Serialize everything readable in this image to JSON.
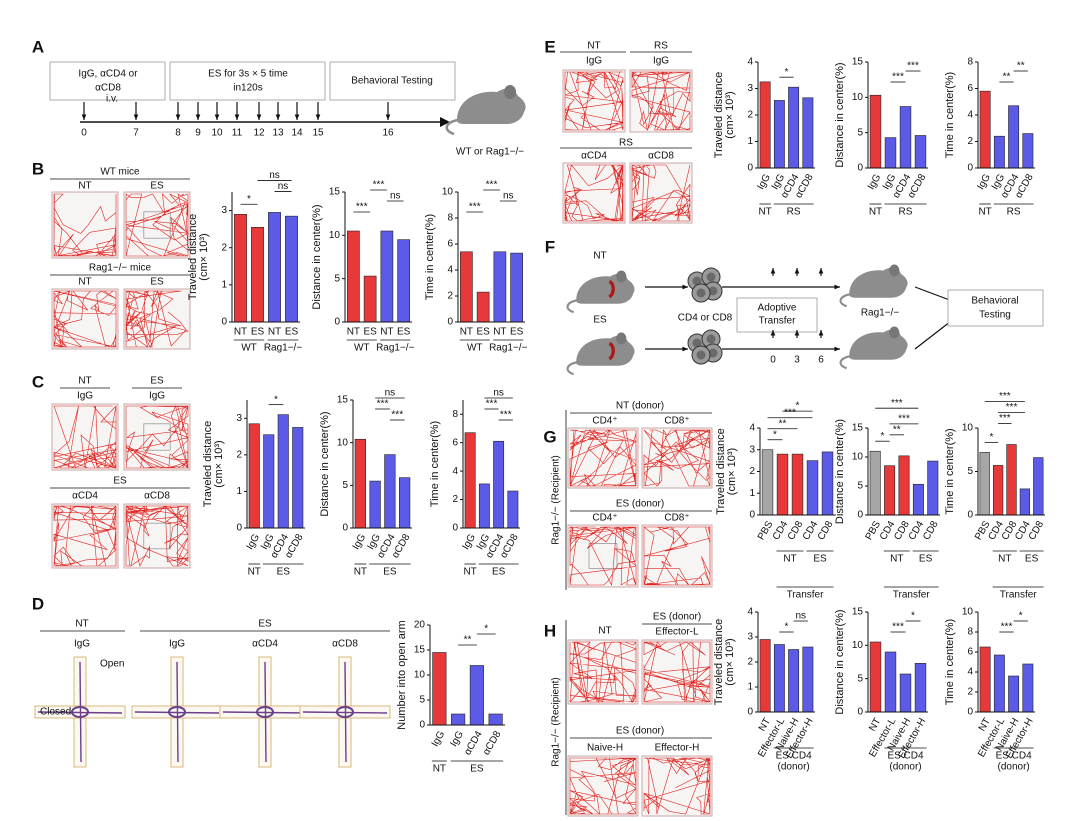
{
  "diagram": {
    "panel_labels": [
      "A",
      "B",
      "C",
      "D",
      "E",
      "F",
      "G",
      "H"
    ],
    "A": {
      "texts": [
        "IgG, αCD4 or",
        "αCD8",
        "ES for 3s × 5 time",
        "in120s",
        "Behavioral Testing",
        "i.v.",
        "WT or Rag1−/−"
      ],
      "days": [
        0,
        7,
        8,
        9,
        10,
        11,
        12,
        13,
        14,
        15,
        16
      ]
    },
    "B": {
      "texts": [
        "WT mice",
        "NT",
        "ES",
        "Rag1−/− mice",
        "NT",
        "ES"
      ]
    },
    "C": {
      "texts": [
        "NT",
        "IgG",
        "ES",
        "IgG",
        "ES",
        "αCD4",
        "αCD8"
      ]
    },
    "D": {
      "texts": [
        "NT",
        "ES",
        "IgG",
        "IgG",
        "αCD4",
        "αCD8",
        "Open",
        "Closed"
      ]
    },
    "E": {
      "texts": [
        "NT",
        "IgG",
        "RS",
        "IgG",
        "RS",
        "αCD4",
        "αCD8"
      ]
    },
    "F": {
      "texts": [
        "NT",
        "ES",
        "CD4 or CD8",
        "Adoptive",
        "Transfer",
        "Rag1−/−",
        "Behavioral",
        "Testing"
      ],
      "days": [
        0,
        3,
        6
      ]
    },
    "G": {
      "texts": [
        "NT (donor)",
        "CD4⁺",
        "CD8⁺",
        "ES (donor)",
        "CD4⁺",
        "CD8⁺",
        "Rag1−/− (Recipient)"
      ]
    },
    "H": {
      "texts": [
        "NT",
        "ES (donor)",
        "Effector-L",
        "ES (donor)",
        "Naive-H",
        "Effector-H",
        "Rag1−/− (Recipient)"
      ]
    }
  },
  "chart_data": [
    {
      "type": "bar",
      "ylabel": [
        "Traveled distance",
        "(cm× 10³)"
      ],
      "categories": [
        "NT",
        "ES",
        "NT",
        "ES"
      ],
      "values": [
        2.9,
        2.55,
        2.95,
        2.85
      ],
      "colors": [
        "#e8393a",
        "#e8393a",
        "#5b5be8",
        "#5b5be8"
      ],
      "ylim": [
        0,
        3.5
      ],
      "yticks": [
        0,
        1,
        2,
        3
      ],
      "groups": [
        {
          "lines": [
            "WT"
          ],
          "span": [
            0,
            1
          ]
        },
        {
          "lines": [
            "Rag1−/−"
          ],
          "span": [
            2,
            3
          ]
        }
      ],
      "annotations": [
        {
          "text": "*",
          "between": [
            0,
            1
          ]
        },
        {
          "text": "ns",
          "between": [
            2,
            3
          ]
        },
        {
          "text": "ns",
          "between": [
            1,
            3
          ]
        }
      ]
    },
    {
      "type": "bar",
      "ylabel": [
        "Distance in center(%)"
      ],
      "categories": [
        "NT",
        "ES",
        "NT",
        "ES"
      ],
      "values": [
        10.5,
        5.3,
        10.5,
        9.5
      ],
      "colors": [
        "#e8393a",
        "#e8393a",
        "#5b5be8",
        "#5b5be8"
      ],
      "ylim": [
        0,
        15
      ],
      "yticks": [
        0,
        5,
        10,
        15
      ],
      "groups": [
        {
          "lines": [
            "WT"
          ],
          "span": [
            0,
            1
          ]
        },
        {
          "lines": [
            "Rag1−/−"
          ],
          "span": [
            2,
            3
          ]
        }
      ],
      "annotations": [
        {
          "text": "***",
          "between": [
            0,
            1
          ]
        },
        {
          "text": "ns",
          "between": [
            2,
            3
          ]
        },
        {
          "text": "***",
          "between": [
            1,
            2
          ]
        }
      ]
    },
    {
      "type": "bar",
      "ylabel": [
        "Time in center(%)"
      ],
      "categories": [
        "NT",
        "ES",
        "NT",
        "ES"
      ],
      "values": [
        5.4,
        2.3,
        5.4,
        5.3
      ],
      "colors": [
        "#e8393a",
        "#e8393a",
        "#5b5be8",
        "#5b5be8"
      ],
      "ylim": [
        0,
        10
      ],
      "yticks": [
        0,
        2,
        4,
        6,
        8,
        10
      ],
      "groups": [
        {
          "lines": [
            "WT"
          ],
          "span": [
            0,
            1
          ]
        },
        {
          "lines": [
            "Rag1−/−"
          ],
          "span": [
            2,
            3
          ]
        }
      ],
      "annotations": [
        {
          "text": "***",
          "between": [
            0,
            1
          ]
        },
        {
          "text": "ns",
          "between": [
            2,
            3
          ]
        },
        {
          "text": "***",
          "between": [
            1,
            2
          ]
        }
      ]
    },
    {
      "type": "bar",
      "ylabel": [
        "Traveled distance",
        "(cm× 10³)"
      ],
      "categories": [
        "IgG",
        "IgG",
        "αCD4",
        "αCD8"
      ],
      "values": [
        2.85,
        2.55,
        3.1,
        2.75
      ],
      "colors": [
        "#e8393a",
        "#5b5be8",
        "#5b5be8",
        "#5b5be8"
      ],
      "ylim": [
        0,
        3.5
      ],
      "yticks": [
        0,
        1,
        2,
        3
      ],
      "groups": [
        {
          "lines": [
            "NT"
          ],
          "span": [
            0,
            0
          ]
        },
        {
          "lines": [
            "ES"
          ],
          "span": [
            1,
            3
          ]
        }
      ],
      "annotations": [
        {
          "text": "*",
          "between": [
            1,
            2
          ]
        }
      ]
    },
    {
      "type": "bar",
      "ylabel": [
        "Distance in center(%)"
      ],
      "categories": [
        "IgG",
        "IgG",
        "αCD4",
        "αCD8"
      ],
      "values": [
        10.4,
        5.5,
        8.6,
        5.9
      ],
      "colors": [
        "#e8393a",
        "#5b5be8",
        "#5b5be8",
        "#5b5be8"
      ],
      "ylim": [
        0,
        15
      ],
      "yticks": [
        0,
        5,
        10,
        15
      ],
      "groups": [
        {
          "lines": [
            "NT"
          ],
          "span": [
            0,
            0
          ]
        },
        {
          "lines": [
            "ES"
          ],
          "span": [
            1,
            3
          ]
        }
      ],
      "annotations": [
        {
          "text": "***",
          "between": [
            2,
            3
          ]
        },
        {
          "text": "***",
          "between": [
            1,
            2
          ]
        },
        {
          "text": "ns",
          "between": [
            1,
            3
          ]
        }
      ]
    },
    {
      "type": "bar",
      "ylabel": [
        "Time in center(%)"
      ],
      "categories": [
        "IgG",
        "IgG",
        "αCD4",
        "αCD8"
      ],
      "values": [
        6.7,
        3.1,
        6.1,
        2.6
      ],
      "colors": [
        "#e8393a",
        "#5b5be8",
        "#5b5be8",
        "#5b5be8"
      ],
      "ylim": [
        0,
        9
      ],
      "yticks": [
        0,
        2,
        4,
        6,
        8
      ],
      "groups": [
        {
          "lines": [
            "NT"
          ],
          "span": [
            0,
            0
          ]
        },
        {
          "lines": [
            "ES"
          ],
          "span": [
            1,
            3
          ]
        }
      ],
      "annotations": [
        {
          "text": "***",
          "between": [
            2,
            3
          ]
        },
        {
          "text": "***",
          "between": [
            1,
            2
          ]
        },
        {
          "text": "ns",
          "between": [
            1,
            3
          ]
        }
      ]
    },
    {
      "type": "bar",
      "ylabel": [
        "Number into open arm"
      ],
      "categories": [
        "IgG",
        "IgG",
        "αCD4",
        "αCD8"
      ],
      "values": [
        14.5,
        2.2,
        11.9,
        2.2
      ],
      "colors": [
        "#e8393a",
        "#5b5be8",
        "#5b5be8",
        "#5b5be8"
      ],
      "ylim": [
        0,
        20
      ],
      "yticks": [
        0,
        5,
        10,
        15,
        20
      ],
      "groups": [
        {
          "lines": [
            "NT"
          ],
          "span": [
            0,
            0
          ]
        },
        {
          "lines": [
            "ES"
          ],
          "span": [
            1,
            3
          ]
        }
      ],
      "annotations": [
        {
          "text": "**",
          "between": [
            1,
            2
          ]
        },
        {
          "text": "*",
          "between": [
            2,
            3
          ]
        }
      ]
    },
    {
      "type": "bar",
      "ylabel": [
        "Traveled distance",
        "(cm× 10³)"
      ],
      "categories": [
        "IgG",
        "IgG",
        "αCD4",
        "αCD8"
      ],
      "values": [
        3.25,
        2.55,
        3.05,
        2.65
      ],
      "colors": [
        "#e8393a",
        "#5b5be8",
        "#5b5be8",
        "#5b5be8"
      ],
      "ylim": [
        0,
        4
      ],
      "yticks": [
        0,
        1,
        2,
        3,
        4
      ],
      "groups": [
        {
          "lines": [
            "NT"
          ],
          "span": [
            0,
            0
          ]
        },
        {
          "lines": [
            "RS"
          ],
          "span": [
            1,
            3
          ]
        }
      ],
      "annotations": [
        {
          "text": "*",
          "between": [
            1,
            2
          ]
        }
      ]
    },
    {
      "type": "bar",
      "ylabel": [
        "Distance in center(%)"
      ],
      "categories": [
        "IgG",
        "IgG",
        "αCD4",
        "αCD8"
      ],
      "values": [
        10.3,
        4.3,
        8.7,
        4.6
      ],
      "colors": [
        "#e8393a",
        "#5b5be8",
        "#5b5be8",
        "#5b5be8"
      ],
      "ylim": [
        0,
        15
      ],
      "yticks": [
        0,
        5,
        10,
        15
      ],
      "groups": [
        {
          "lines": [
            "NT"
          ],
          "span": [
            0,
            0
          ]
        },
        {
          "lines": [
            "RS"
          ],
          "span": [
            1,
            3
          ]
        }
      ],
      "annotations": [
        {
          "text": "***",
          "between": [
            1,
            2
          ]
        },
        {
          "text": "***",
          "between": [
            2,
            3
          ]
        }
      ]
    },
    {
      "type": "bar",
      "ylabel": [
        "Time in center(%)"
      ],
      "categories": [
        "IgG",
        "IgG",
        "αCD4",
        "αCD8"
      ],
      "values": [
        5.8,
        2.4,
        4.7,
        2.6
      ],
      "colors": [
        "#e8393a",
        "#5b5be8",
        "#5b5be8",
        "#5b5be8"
      ],
      "ylim": [
        0,
        8
      ],
      "yticks": [
        0,
        2,
        4,
        6,
        8
      ],
      "groups": [
        {
          "lines": [
            "NT"
          ],
          "span": [
            0,
            0
          ]
        },
        {
          "lines": [
            "RS"
          ],
          "span": [
            1,
            3
          ]
        }
      ],
      "annotations": [
        {
          "text": "**",
          "between": [
            1,
            2
          ]
        },
        {
          "text": "**",
          "between": [
            2,
            3
          ]
        }
      ]
    },
    {
      "type": "bar",
      "ylabel": [
        "Traveled distance",
        "(cm× 10³)"
      ],
      "categories": [
        "PBS",
        "CD4",
        "CD8",
        "CD4",
        "CD8"
      ],
      "values": [
        3.0,
        2.8,
        2.8,
        2.5,
        2.9
      ],
      "colors": [
        "#a6a6a6",
        "#e8393a",
        "#e8393a",
        "#5b5be8",
        "#5b5be8"
      ],
      "ylim": [
        0,
        4
      ],
      "yticks": [
        0,
        1,
        2,
        3,
        4
      ],
      "groups": [
        {
          "lines": [
            "NT"
          ],
          "span": [
            1,
            2
          ]
        },
        {
          "lines": [
            "ES"
          ],
          "span": [
            3,
            4
          ]
        },
        {
          "lines": [
            "Transfer"
          ],
          "span": [
            1,
            4
          ]
        }
      ],
      "annotations": [
        {
          "text": "*",
          "between": [
            0,
            1
          ]
        },
        {
          "text": "**",
          "between": [
            0,
            2
          ]
        },
        {
          "text": "***",
          "between": [
            0,
            3
          ]
        },
        {
          "text": "*",
          "between": [
            1,
            3
          ]
        }
      ]
    },
    {
      "type": "bar",
      "ylabel": [
        "Distance in center(%)"
      ],
      "categories": [
        "PBS",
        "CD4",
        "CD8",
        "CD4",
        "CD8"
      ],
      "values": [
        11,
        8.5,
        10.2,
        5.3,
        9.3
      ],
      "colors": [
        "#a6a6a6",
        "#e8393a",
        "#e8393a",
        "#5b5be8",
        "#5b5be8"
      ],
      "ylim": [
        0,
        15
      ],
      "yticks": [
        0,
        5,
        10,
        15
      ],
      "groups": [
        {
          "lines": [
            "NT"
          ],
          "span": [
            1,
            2
          ]
        },
        {
          "lines": [
            "ES"
          ],
          "span": [
            3,
            4
          ]
        },
        {
          "lines": [
            "Transfer"
          ],
          "span": [
            1,
            4
          ]
        }
      ],
      "annotations": [
        {
          "text": "*",
          "between": [
            0,
            1
          ]
        },
        {
          "text": "**",
          "between": [
            1,
            2
          ]
        },
        {
          "text": "***",
          "between": [
            1,
            3
          ]
        },
        {
          "text": "***",
          "between": [
            0,
            3
          ]
        }
      ]
    },
    {
      "type": "bar",
      "ylabel": [
        "Time in center(%)"
      ],
      "categories": [
        "PBS",
        "CD4",
        "CD8",
        "CD4",
        "CD8"
      ],
      "values": [
        7.2,
        5.7,
        8.1,
        3.0,
        6.6
      ],
      "colors": [
        "#a6a6a6",
        "#e8393a",
        "#e8393a",
        "#5b5be8",
        "#5b5be8"
      ],
      "ylim": [
        0,
        10
      ],
      "yticks": [
        0,
        5,
        10
      ],
      "groups": [
        {
          "lines": [
            "NT"
          ],
          "span": [
            1,
            2
          ]
        },
        {
          "lines": [
            "ES"
          ],
          "span": [
            3,
            4
          ]
        },
        {
          "lines": [
            "Transfer"
          ],
          "span": [
            1,
            4
          ]
        }
      ],
      "annotations": [
        {
          "text": "*",
          "between": [
            0,
            1
          ]
        },
        {
          "text": "***",
          "between": [
            1,
            2
          ]
        },
        {
          "text": "***",
          "between": [
            1,
            3
          ]
        },
        {
          "text": "***",
          "between": [
            0,
            3
          ]
        }
      ]
    },
    {
      "type": "bar",
      "ylabel": [
        "Traveled distance",
        "(cm× 10³)"
      ],
      "categories": [
        "NT",
        "Effector-L",
        "Naive-H",
        "Effector-H"
      ],
      "values": [
        2.9,
        2.7,
        2.5,
        2.6
      ],
      "colors": [
        "#e8393a",
        "#5b5be8",
        "#5b5be8",
        "#5b5be8"
      ],
      "ylim": [
        0,
        4
      ],
      "yticks": [
        0,
        1,
        2,
        3,
        4
      ],
      "groups": [
        {
          "lines": [
            "ES CD4",
            "(donor)"
          ],
          "span": [
            1,
            3
          ]
        }
      ],
      "annotations": [
        {
          "text": "*",
          "between": [
            1,
            2
          ]
        },
        {
          "text": "ns",
          "between": [
            2,
            3
          ]
        }
      ]
    },
    {
      "type": "bar",
      "ylabel": [
        "Distance in center(%)"
      ],
      "categories": [
        "NT",
        "Effector-L",
        "Naive-H",
        "Effector-H"
      ],
      "values": [
        10.5,
        9,
        5.7,
        7.3
      ],
      "colors": [
        "#e8393a",
        "#5b5be8",
        "#5b5be8",
        "#5b5be8"
      ],
      "ylim": [
        0,
        15
      ],
      "yticks": [
        0,
        5,
        10,
        15
      ],
      "groups": [
        {
          "lines": [
            "ES CD4",
            "(donor)"
          ],
          "span": [
            1,
            3
          ]
        }
      ],
      "annotations": [
        {
          "text": "***",
          "between": [
            1,
            2
          ]
        },
        {
          "text": "*",
          "between": [
            2,
            3
          ]
        }
      ]
    },
    {
      "type": "bar",
      "ylabel": [
        "Time in center(%)"
      ],
      "categories": [
        "NT",
        "Effector-L",
        "Naive-H",
        "Effector-H"
      ],
      "values": [
        6.5,
        5.7,
        3.6,
        4.8
      ],
      "colors": [
        "#e8393a",
        "#5b5be8",
        "#5b5be8",
        "#5b5be8"
      ],
      "ylim": [
        0,
        10
      ],
      "yticks": [
        0,
        2,
        4,
        6,
        8,
        10
      ],
      "groups": [
        {
          "lines": [
            "ES CD4",
            "(donor)"
          ],
          "span": [
            1,
            3
          ]
        }
      ],
      "annotations": [
        {
          "text": "***",
          "between": [
            1,
            2
          ]
        },
        {
          "text": "*",
          "between": [
            2,
            3
          ]
        }
      ]
    }
  ]
}
